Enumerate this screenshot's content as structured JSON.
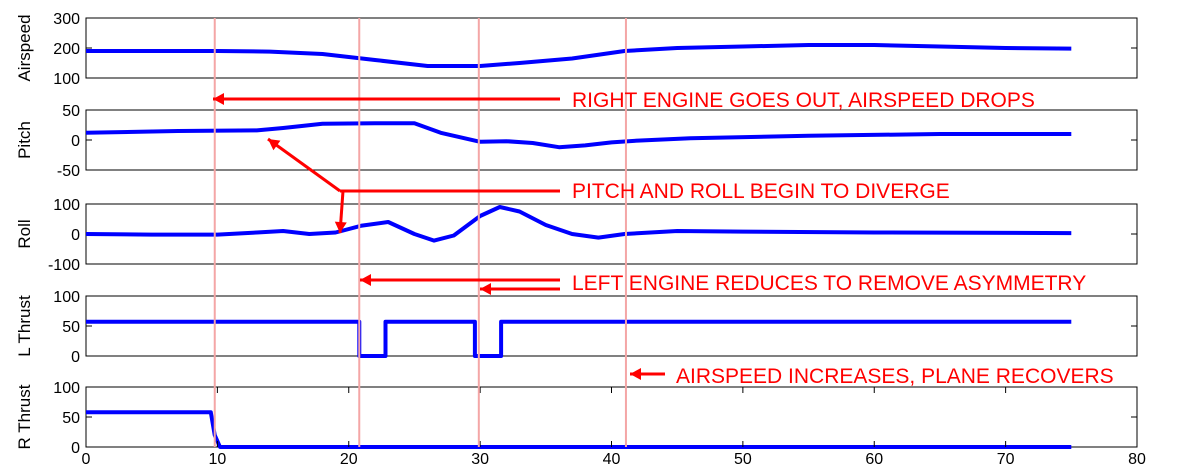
{
  "chart_data": {
    "type": "line",
    "x_ticks": [
      "0",
      "10",
      "20",
      "30",
      "40",
      "50",
      "60",
      "70",
      "80"
    ],
    "xlim": [
      0,
      80
    ],
    "grid": false,
    "event_lines_x": [
      9.8,
      20.8,
      29.9,
      41.1
    ],
    "event_line_color": "#f4a6a6",
    "series_color": "#0000ff",
    "annotation_color": "#ff0000",
    "panels": [
      {
        "ylabel": "Airspeed",
        "ylim": [
          100,
          300
        ],
        "y_ticks": [
          "300",
          "200",
          "100"
        ],
        "points": [
          [
            0,
            190
          ],
          [
            10,
            190
          ],
          [
            14,
            188
          ],
          [
            18,
            180
          ],
          [
            22,
            160
          ],
          [
            26,
            140
          ],
          [
            30,
            140
          ],
          [
            33,
            150
          ],
          [
            37,
            165
          ],
          [
            41,
            190
          ],
          [
            45,
            200
          ],
          [
            50,
            205
          ],
          [
            55,
            210
          ],
          [
            60,
            210
          ],
          [
            65,
            205
          ],
          [
            70,
            200
          ],
          [
            75,
            198
          ]
        ]
      },
      {
        "ylabel": "Pitch",
        "ylim": [
          -50,
          50
        ],
        "y_ticks": [
          "50",
          "0",
          "-50"
        ],
        "points": [
          [
            0,
            12
          ],
          [
            7,
            15
          ],
          [
            13,
            16
          ],
          [
            15,
            20
          ],
          [
            18,
            27
          ],
          [
            22,
            28
          ],
          [
            25,
            28
          ],
          [
            27,
            12
          ],
          [
            30,
            -3
          ],
          [
            32,
            -2
          ],
          [
            34,
            -5
          ],
          [
            36,
            -12
          ],
          [
            38,
            -9
          ],
          [
            40,
            -4
          ],
          [
            42,
            -1
          ],
          [
            46,
            3
          ],
          [
            55,
            7
          ],
          [
            65,
            10
          ],
          [
            75,
            10
          ]
        ]
      },
      {
        "ylabel": "Roll",
        "ylim": [
          -100,
          100
        ],
        "y_ticks": [
          "100",
          "0",
          "-100"
        ],
        "points": [
          [
            0,
            0
          ],
          [
            5,
            -2
          ],
          [
            10,
            -2
          ],
          [
            13,
            5
          ],
          [
            15,
            10
          ],
          [
            17,
            0
          ],
          [
            19,
            5
          ],
          [
            21,
            28
          ],
          [
            23,
            40
          ],
          [
            25,
            0
          ],
          [
            26.5,
            -22
          ],
          [
            28,
            -5
          ],
          [
            30,
            60
          ],
          [
            31.5,
            90
          ],
          [
            33,
            75
          ],
          [
            35,
            30
          ],
          [
            37,
            0
          ],
          [
            39,
            -12
          ],
          [
            41,
            0
          ],
          [
            45,
            10
          ],
          [
            50,
            8
          ],
          [
            60,
            5
          ],
          [
            75,
            3
          ]
        ]
      },
      {
        "ylabel": "L Thrust",
        "ylim": [
          0,
          100
        ],
        "y_ticks": [
          "100",
          "50",
          "0"
        ],
        "points": [
          [
            0,
            57
          ],
          [
            20.8,
            57
          ],
          [
            20.8,
            0
          ],
          [
            22.8,
            0
          ],
          [
            22.8,
            57
          ],
          [
            29.6,
            57
          ],
          [
            29.6,
            0
          ],
          [
            31.6,
            0
          ],
          [
            31.6,
            57
          ],
          [
            75,
            57
          ]
        ]
      },
      {
        "ylabel": "R Thrust",
        "ylim": [
          0,
          100
        ],
        "y_ticks": [
          "100",
          "50",
          "0"
        ],
        "points": [
          [
            0,
            58
          ],
          [
            9.5,
            58
          ],
          [
            9.8,
            20
          ],
          [
            10.2,
            0
          ],
          [
            75,
            0
          ]
        ]
      }
    ],
    "annotations": [
      {
        "text": "RIGHT ENGINE GOES OUT, AIRSPEED DROPS"
      },
      {
        "text": "PITCH AND ROLL BEGIN TO DIVERGE"
      },
      {
        "text": "LEFT ENGINE REDUCES TO REMOVE ASYMMETRY"
      },
      {
        "text": "AIRSPEED INCREASES, PLANE RECOVERS"
      }
    ]
  }
}
